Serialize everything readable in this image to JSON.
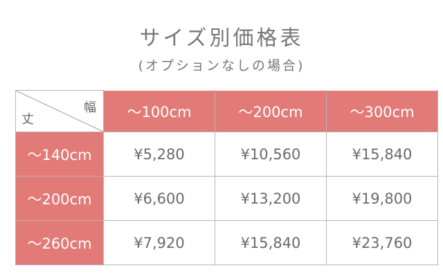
{
  "title": "サイズ別価格表",
  "subtitle": "(オプションなしの場合)",
  "corner": {
    "width_label": "幅",
    "height_label": "丈"
  },
  "accent_color": "#e27a78",
  "columns": [
    "～100cm",
    "～200cm",
    "～300cm"
  ],
  "rows": [
    {
      "label": "～140cm",
      "prices": [
        "¥5,280",
        "¥10,560",
        "¥15,840"
      ]
    },
    {
      "label": "～200cm",
      "prices": [
        "¥6,600",
        "¥13,200",
        "¥19,800"
      ]
    },
    {
      "label": "～260cm",
      "prices": [
        "¥7,920",
        "¥15,840",
        "¥23,760"
      ]
    }
  ]
}
